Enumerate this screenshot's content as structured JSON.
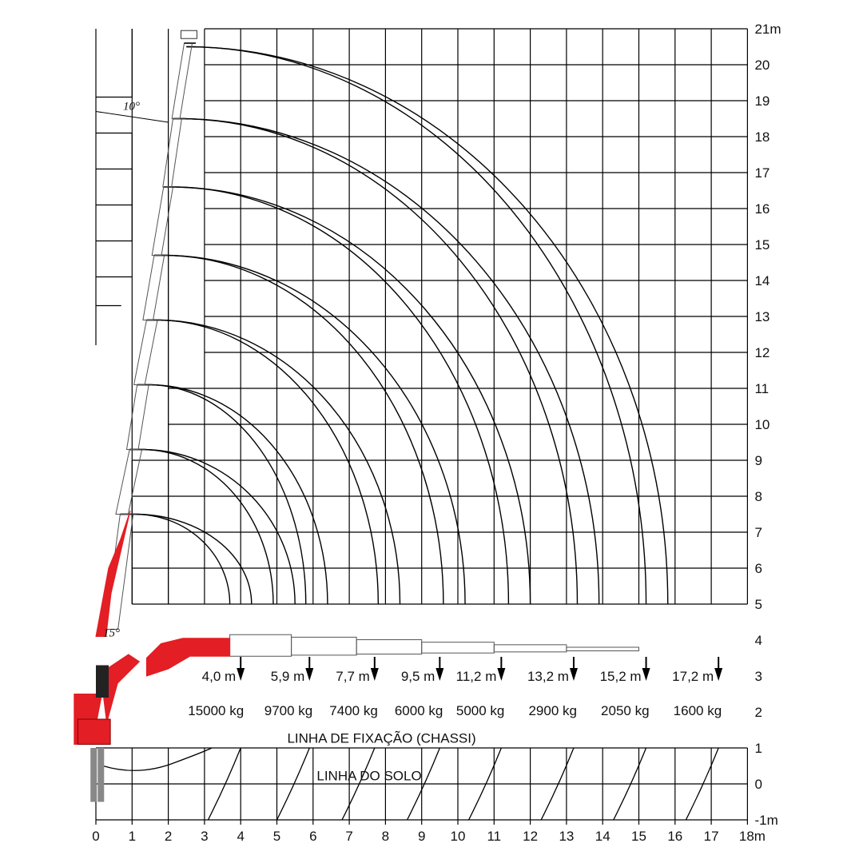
{
  "chart_data": {
    "type": "line",
    "xlim": [
      0,
      18
    ],
    "ylim": [
      -1,
      21
    ],
    "x_unit": "m",
    "y_unit": "m",
    "x_ticks": [
      "0",
      "1",
      "2",
      "3",
      "4",
      "5",
      "6",
      "7",
      "8",
      "9",
      "10",
      "11",
      "12",
      "13",
      "14",
      "15",
      "16",
      "17",
      "18m"
    ],
    "y_ticks": [
      "-1m",
      "0",
      "1",
      "2",
      "3",
      "4",
      "5",
      "6",
      "7",
      "8",
      "9",
      "10",
      "11",
      "12",
      "13",
      "14",
      "15",
      "16",
      "17",
      "18",
      "19",
      "20",
      "21m"
    ],
    "boom_angle_top": "10°",
    "boom_angle_low": "15°",
    "outreach_arcs": [
      {
        "tip_height": 7.5,
        "reach_at_5m": 3.7
      },
      {
        "tip_height": 9.3,
        "reach_at_5m": 4.9
      },
      {
        "tip_height": 11.1,
        "reach_at_5m": 5.8
      },
      {
        "tip_height": 12.9,
        "reach_at_5m": 7.8
      },
      {
        "tip_height": 14.7,
        "reach_at_5m": 9.6
      },
      {
        "tip_height": 16.6,
        "reach_at_5m": 11.4
      },
      {
        "tip_height": 18.5,
        "reach_at_5m": 13.3
      },
      {
        "tip_height": 20.5,
        "reach_at_5m": 15.2
      }
    ],
    "load_points": [
      {
        "reach": 4.0,
        "reach_label": "4,0 m",
        "load_label": "15000 kg"
      },
      {
        "reach": 5.9,
        "reach_label": "5,9 m",
        "load_label": "9700 kg"
      },
      {
        "reach": 7.7,
        "reach_label": "7,7 m",
        "load_label": "7400 kg"
      },
      {
        "reach": 9.5,
        "reach_label": "9,5 m",
        "load_label": "6000 kg"
      },
      {
        "reach": 11.2,
        "reach_label": "11,2 m",
        "load_label": "5000 kg"
      },
      {
        "reach": 13.2,
        "reach_label": "13,2 m",
        "load_label": "2900 kg"
      },
      {
        "reach": 15.2,
        "reach_label": "15,2 m",
        "load_label": "2050 kg"
      },
      {
        "reach": 17.2,
        "reach_label": "17,2 m",
        "load_label": "1600 kg"
      }
    ],
    "reference_lines": [
      {
        "label": "LINHA DE FIXAÇÃO (CHASSI)",
        "y": 1
      },
      {
        "label": "LINHA DO SOLO",
        "y": 0
      }
    ]
  },
  "colors": {
    "crane": "#e31e24",
    "grid": "#000000",
    "boom_outline": "#555555"
  }
}
